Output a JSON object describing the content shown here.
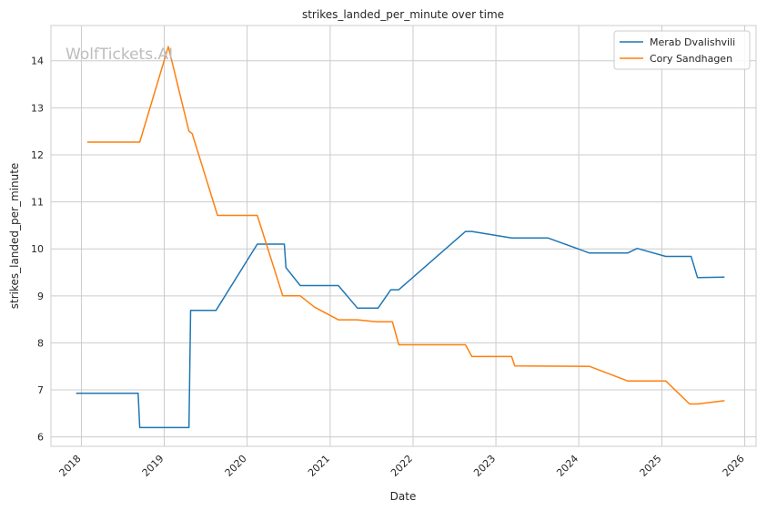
{
  "chart_data": {
    "type": "line",
    "title": "strikes_landed_per_minute over time",
    "xlabel": "Date",
    "ylabel": "strikes_landed_per_minute",
    "watermark": "WolfTickets.AI",
    "x_ticks": [
      "2018",
      "2019",
      "2020",
      "2021",
      "2022",
      "2023",
      "2024",
      "2025",
      "2026"
    ],
    "y_ticks": [
      6,
      7,
      8,
      9,
      10,
      11,
      12,
      13,
      14
    ],
    "xlim": [
      "2017-08-20",
      "2026-02-20"
    ],
    "ylim": [
      5.8,
      14.75
    ],
    "grid": true,
    "legend_position": "top-right",
    "series": [
      {
        "name": "Merab Dvalishvili",
        "color": "#1f77b4",
        "points": [
          [
            "2017-12-09",
            6.93
          ],
          [
            "2018-09-08",
            6.93
          ],
          [
            "2018-09-15",
            6.2
          ],
          [
            "2019-04-20",
            6.2
          ],
          [
            "2019-04-27",
            8.69
          ],
          [
            "2019-08-17",
            8.69
          ],
          [
            "2020-02-15",
            10.1
          ],
          [
            "2020-06-13",
            10.1
          ],
          [
            "2020-06-20",
            9.6
          ],
          [
            "2020-08-22",
            9.22
          ],
          [
            "2021-02-06",
            9.22
          ],
          [
            "2021-05-01",
            8.74
          ],
          [
            "2021-07-31",
            8.74
          ],
          [
            "2021-09-25",
            9.13
          ],
          [
            "2021-10-30",
            9.13
          ],
          [
            "2022-08-20",
            10.37
          ],
          [
            "2022-09-17",
            10.37
          ],
          [
            "2023-03-11",
            10.23
          ],
          [
            "2023-08-19",
            10.23
          ],
          [
            "2024-02-17",
            9.91
          ],
          [
            "2024-08-03",
            9.91
          ],
          [
            "2024-09-14",
            10.01
          ],
          [
            "2025-01-18",
            9.84
          ],
          [
            "2025-05-10",
            9.84
          ],
          [
            "2025-06-07",
            9.39
          ],
          [
            "2025-10-04",
            9.4
          ]
        ]
      },
      {
        "name": "Cory Sandhagen",
        "color": "#ff7f0e",
        "points": [
          [
            "2018-01-27",
            12.27
          ],
          [
            "2018-09-15",
            12.27
          ],
          [
            "2019-01-19",
            14.3
          ],
          [
            "2019-04-20",
            12.5
          ],
          [
            "2019-05-04",
            12.45
          ],
          [
            "2019-08-24",
            10.71
          ],
          [
            "2020-02-15",
            10.71
          ],
          [
            "2020-06-06",
            9.0
          ],
          [
            "2020-08-22",
            9.0
          ],
          [
            "2020-10-24",
            8.76
          ],
          [
            "2021-02-06",
            8.49
          ],
          [
            "2021-05-01",
            8.49
          ],
          [
            "2021-07-24",
            8.45
          ],
          [
            "2021-10-02",
            8.45
          ],
          [
            "2021-10-30",
            7.96
          ],
          [
            "2022-08-20",
            7.96
          ],
          [
            "2022-09-17",
            7.71
          ],
          [
            "2023-03-11",
            7.71
          ],
          [
            "2023-03-25",
            7.51
          ],
          [
            "2024-02-17",
            7.5
          ],
          [
            "2024-08-03",
            7.19
          ],
          [
            "2025-01-18",
            7.19
          ],
          [
            "2025-05-03",
            6.7
          ],
          [
            "2025-06-07",
            6.7
          ],
          [
            "2025-10-04",
            6.77
          ]
        ]
      }
    ]
  }
}
